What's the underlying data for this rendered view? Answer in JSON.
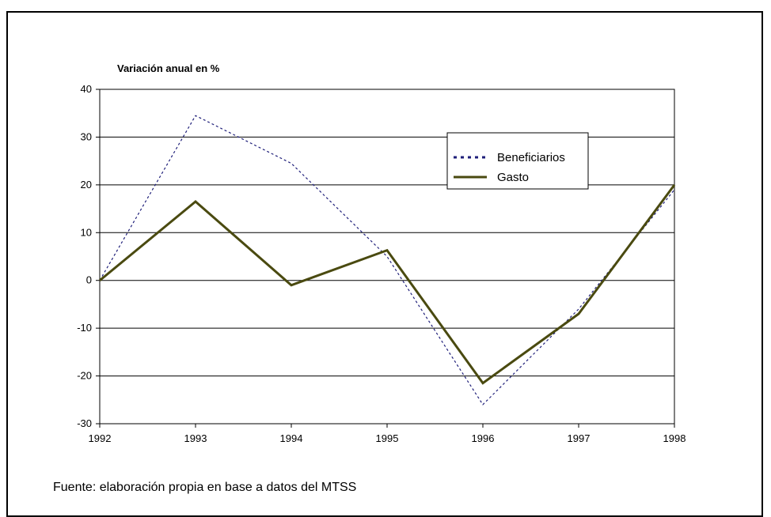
{
  "chart_data": {
    "type": "line",
    "ylabel": "Variación anual en %",
    "x": [
      1992,
      1993,
      1994,
      1995,
      1996,
      1997,
      1998
    ],
    "x_ticks": [
      "1992",
      "1993",
      "1994",
      "1995",
      "1996",
      "1997",
      "1998"
    ],
    "y_ticks": [
      "40",
      "30",
      "20",
      "10",
      "0",
      "-10",
      "-20",
      "-30"
    ],
    "ylim": [
      -30,
      40
    ],
    "grid": "horizontal",
    "legend_position": "top-right",
    "series": [
      {
        "name": "Beneficiarios",
        "style": "dotted",
        "color": "#1f1f7a",
        "values": [
          0,
          34.5,
          24.5,
          5,
          -26,
          -6,
          19
        ]
      },
      {
        "name": "Gasto",
        "style": "solid",
        "color": "#4a4a10",
        "values": [
          0,
          16.5,
          -1,
          6.3,
          -21.5,
          -7,
          20
        ]
      }
    ]
  },
  "footer": {
    "source": "Fuente: elaboración propia en base a datos del MTSS"
  }
}
